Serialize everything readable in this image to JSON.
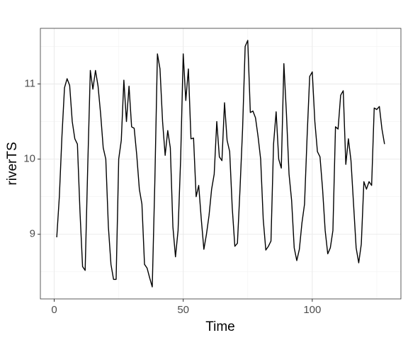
{
  "chart_data": {
    "type": "line",
    "xlabel": "Time",
    "ylabel": "riverTS",
    "x": [
      1,
      2,
      3,
      4,
      5,
      6,
      7,
      8,
      9,
      10,
      11,
      12,
      13,
      14,
      15,
      16,
      17,
      18,
      19,
      20,
      21,
      22,
      23,
      24,
      25,
      26,
      27,
      28,
      29,
      30,
      31,
      32,
      33,
      34,
      35,
      36,
      37,
      38,
      39,
      40,
      41,
      42,
      43,
      44,
      45,
      46,
      47,
      48,
      49,
      50,
      51,
      52,
      53,
      54,
      55,
      56,
      57,
      58,
      59,
      60,
      61,
      62,
      63,
      64,
      65,
      66,
      67,
      68,
      69,
      70,
      71,
      72,
      73,
      74,
      75,
      76,
      77,
      78,
      79,
      80,
      81,
      82,
      83,
      84,
      85,
      86,
      87,
      88,
      89,
      90,
      91,
      92,
      93,
      94,
      95,
      96,
      97,
      98,
      99,
      100,
      101,
      102,
      103,
      104,
      105,
      106,
      107,
      108,
      109,
      110,
      111,
      112,
      113,
      114,
      115,
      116,
      117,
      118,
      119,
      120,
      121,
      122,
      123,
      124,
      125,
      126,
      127,
      128
    ],
    "series": [
      {
        "color": "#000000",
        "values": [
          8.96,
          9.5,
          10.3,
          10.95,
          11.07,
          10.98,
          10.5,
          10.27,
          10.2,
          9.3,
          8.57,
          8.52,
          9.9,
          11.18,
          10.93,
          11.18,
          10.97,
          10.6,
          10.15,
          10.0,
          9.1,
          8.6,
          8.4,
          8.4,
          10.0,
          10.25,
          11.05,
          10.5,
          10.97,
          10.43,
          10.41,
          10.05,
          9.6,
          9.4,
          8.6,
          8.55,
          8.42,
          8.3,
          9.7,
          11.4,
          11.2,
          10.5,
          10.05,
          10.38,
          10.15,
          9.1,
          8.7,
          9.05,
          10.0,
          11.4,
          10.78,
          11.2,
          10.27,
          10.28,
          9.5,
          9.65,
          9.2,
          8.8,
          9.0,
          9.25,
          9.6,
          9.8,
          10.5,
          10.03,
          9.98,
          10.75,
          10.25,
          10.1,
          9.35,
          8.84,
          8.88,
          9.6,
          10.4,
          11.5,
          11.58,
          10.62,
          10.64,
          10.55,
          10.3,
          10.0,
          9.2,
          8.79,
          8.84,
          8.91,
          10.2,
          10.63,
          10.0,
          9.88,
          11.27,
          10.6,
          9.8,
          9.45,
          8.82,
          8.65,
          8.8,
          9.15,
          9.4,
          10.3,
          11.1,
          11.16,
          10.5,
          10.1,
          10.03,
          9.6,
          9.05,
          8.74,
          8.82,
          9.05,
          10.43,
          10.4,
          10.85,
          10.91,
          9.93,
          10.27,
          9.98,
          9.4,
          8.82,
          8.62,
          8.87,
          9.7,
          9.6,
          9.7,
          9.65,
          10.68,
          10.66,
          10.7,
          10.4,
          10.2
        ]
      }
    ],
    "xlim": [
      -5.35,
      134.35
    ],
    "xticks": [
      0,
      50,
      100
    ],
    "ylim": [
      8.14,
      11.74
    ],
    "yticks": [
      9,
      10,
      11
    ],
    "grid": true
  }
}
